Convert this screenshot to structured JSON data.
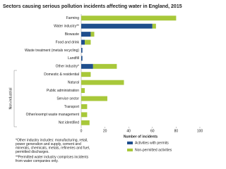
{
  "chart_data": {
    "type": "stacked-barh",
    "title": "Sectors causing serious pollution incidents affecting water in England, 2015",
    "categories": [
      "Farming",
      "Water industry**",
      "Biowaste",
      "Food and drink",
      "Waste treatment (metals recycling)",
      "Landfill",
      "Other industry*",
      "Domestic & residential",
      "Natural",
      "Public administration",
      "Service sector",
      "Transport",
      "Other/exempt waste management",
      "Not identified"
    ],
    "series": [
      {
        "name": "Activities with permits",
        "color": "#1f4e8c",
        "values": [
          0,
          60,
          8,
          3,
          1,
          1,
          10,
          0,
          0,
          0,
          0,
          0,
          0,
          0
        ]
      },
      {
        "name": "Non-permitted activities",
        "color": "#a8c83a",
        "values": [
          80,
          3,
          3,
          5,
          0,
          0,
          20,
          8,
          36,
          3,
          22,
          5,
          5,
          7
        ]
      }
    ],
    "group_label": "Non-industrial",
    "xlabel": "Number of incidents",
    "xlim": [
      0,
      100
    ],
    "xticks": [
      0,
      20,
      40,
      60,
      80,
      100
    ],
    "legend": "lower right",
    "footnotes": [
      [
        "*Other industry includes: manufacturing, retail,",
        "power generation and supply, cement and",
        "minerals, chemicals, metals, refineries and fuel,",
        "permitted discharges."
      ],
      [
        "**Permitted water industry comprises incidents",
        "from water companies only."
      ]
    ]
  }
}
